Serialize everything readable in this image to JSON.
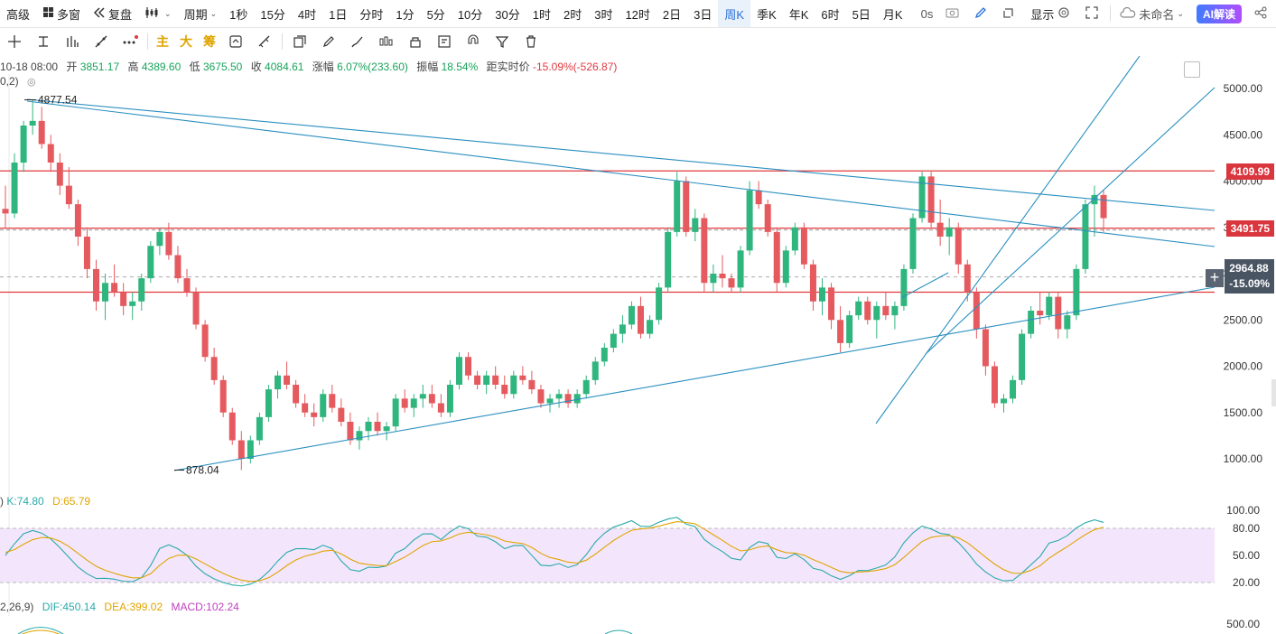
{
  "toolbar": {
    "items": [
      {
        "label": "高级",
        "icon": "none"
      },
      {
        "label": "多窗",
        "icon": "grid-icon"
      },
      {
        "label": "复盘",
        "icon": "rewind-icon"
      },
      {
        "label": "",
        "icon": "candle-type-icon",
        "caret": true
      },
      {
        "label": "周期",
        "caret": true
      },
      {
        "label": "1秒"
      },
      {
        "label": "15分"
      },
      {
        "label": "4时"
      },
      {
        "label": "1日"
      },
      {
        "label": "分时"
      },
      {
        "label": "1分"
      },
      {
        "label": "5分"
      },
      {
        "label": "10分"
      },
      {
        "label": "30分"
      },
      {
        "label": "1时"
      },
      {
        "label": "2时"
      },
      {
        "label": "3时"
      },
      {
        "label": "12时"
      },
      {
        "label": "2日"
      },
      {
        "label": "3日"
      },
      {
        "label": "周K",
        "active": true
      },
      {
        "label": "季K"
      },
      {
        "label": "年K"
      },
      {
        "label": "6时"
      },
      {
        "label": "5日"
      },
      {
        "label": "月K"
      }
    ],
    "right": {
      "timer": "0s",
      "display_label": "显示",
      "account_label": "未命名",
      "ai_label": "AI解读"
    }
  },
  "toolbar2": {
    "text_buttons": [
      "主",
      "大",
      "筹"
    ]
  },
  "ohlc": {
    "date": "10-18 08:00",
    "open_label": "开",
    "open": "3851.17",
    "high_label": "高",
    "high": "4389.60",
    "low_label": "低",
    "low": "3675.50",
    "close_label": "收",
    "close": "4084.61",
    "change_label": "涨幅",
    "change": "6.07%(233.60)",
    "amp_label": "振幅",
    "amp": "18.54%",
    "dist_label": "距实时价",
    "dist": "-15.09%(-526.87)"
  },
  "legend_stub": "0,2)",
  "chart_data": {
    "type": "candlestick",
    "price_axis_ticks": [
      5000,
      4500,
      4000,
      3500,
      3000,
      2500,
      2000,
      1500,
      1000
    ],
    "horizontal_levels": [
      {
        "value": 4109.99,
        "label": "4109.99",
        "color": "#e0393e"
      },
      {
        "value": 3491.75,
        "label": "3491.75",
        "color": "#e0393e"
      },
      {
        "value": 2800,
        "label": "",
        "color": "#e0393e"
      }
    ],
    "current_price": {
      "value": 2964.88,
      "label": "2964.88",
      "pct": "-15.09%"
    },
    "annotations": [
      {
        "text": "4877.54",
        "value": 4877.54
      },
      {
        "text": "878.04",
        "value": 878.04
      }
    ],
    "candles": [
      [
        3700,
        3950,
        3500,
        3650
      ],
      [
        3650,
        4300,
        3600,
        4200
      ],
      [
        4200,
        4650,
        4100,
        4600
      ],
      [
        4600,
        4880,
        4500,
        4650
      ],
      [
        4650,
        4800,
        4350,
        4400
      ],
      [
        4400,
        4500,
        4100,
        4200
      ],
      [
        4200,
        4300,
        3850,
        3950
      ],
      [
        3950,
        4150,
        3700,
        3750
      ],
      [
        3750,
        3800,
        3300,
        3400
      ],
      [
        3400,
        3500,
        2950,
        3050
      ],
      [
        3050,
        3150,
        2600,
        2700
      ],
      [
        2700,
        3000,
        2500,
        2900
      ],
      [
        2900,
        3100,
        2750,
        2800
      ],
      [
        2800,
        2900,
        2550,
        2650
      ],
      [
        2650,
        2800,
        2500,
        2700
      ],
      [
        2700,
        3000,
        2600,
        2950
      ],
      [
        2950,
        3350,
        2900,
        3300
      ],
      [
        3300,
        3500,
        3200,
        3450
      ],
      [
        3450,
        3550,
        3150,
        3200
      ],
      [
        3200,
        3300,
        2900,
        2950
      ],
      [
        2950,
        3050,
        2750,
        2800
      ],
      [
        2800,
        2850,
        2400,
        2450
      ],
      [
        2450,
        2500,
        2050,
        2100
      ],
      [
        2100,
        2200,
        1800,
        1850
      ],
      [
        1850,
        1900,
        1450,
        1500
      ],
      [
        1500,
        1550,
        1150,
        1200
      ],
      [
        1200,
        1300,
        878,
        1000
      ],
      [
        1000,
        1250,
        950,
        1200
      ],
      [
        1200,
        1500,
        1150,
        1450
      ],
      [
        1450,
        1800,
        1400,
        1750
      ],
      [
        1750,
        1950,
        1650,
        1900
      ],
      [
        1900,
        2050,
        1750,
        1800
      ],
      [
        1800,
        1850,
        1550,
        1600
      ],
      [
        1600,
        1700,
        1450,
        1500
      ],
      [
        1500,
        1600,
        1350,
        1450
      ],
      [
        1450,
        1750,
        1400,
        1700
      ],
      [
        1700,
        1800,
        1500,
        1550
      ],
      [
        1550,
        1650,
        1350,
        1400
      ],
      [
        1400,
        1500,
        1150,
        1200
      ],
      [
        1200,
        1350,
        1100,
        1300
      ],
      [
        1300,
        1450,
        1200,
        1400
      ],
      [
        1400,
        1500,
        1250,
        1300
      ],
      [
        1300,
        1400,
        1200,
        1350
      ],
      [
        1350,
        1700,
        1300,
        1650
      ],
      [
        1650,
        1750,
        1500,
        1550
      ],
      [
        1550,
        1700,
        1450,
        1650
      ],
      [
        1650,
        1800,
        1550,
        1700
      ],
      [
        1700,
        1800,
        1550,
        1600
      ],
      [
        1600,
        1700,
        1450,
        1500
      ],
      [
        1500,
        1850,
        1450,
        1800
      ],
      [
        1800,
        2150,
        1750,
        2100
      ],
      [
        2100,
        2150,
        1850,
        1900
      ],
      [
        1900,
        1950,
        1750,
        1800
      ],
      [
        1800,
        1950,
        1700,
        1900
      ],
      [
        1900,
        2000,
        1750,
        1800
      ],
      [
        1800,
        1900,
        1650,
        1700
      ],
      [
        1700,
        1950,
        1650,
        1900
      ],
      [
        1900,
        2000,
        1800,
        1850
      ],
      [
        1850,
        1950,
        1700,
        1750
      ],
      [
        1750,
        1800,
        1550,
        1600
      ],
      [
        1600,
        1700,
        1500,
        1650
      ],
      [
        1650,
        1750,
        1550,
        1700
      ],
      [
        1700,
        1750,
        1550,
        1600
      ],
      [
        1600,
        1750,
        1550,
        1700
      ],
      [
        1700,
        1900,
        1650,
        1850
      ],
      [
        1850,
        2100,
        1800,
        2050
      ],
      [
        2050,
        2250,
        2000,
        2200
      ],
      [
        2200,
        2400,
        2150,
        2350
      ],
      [
        2350,
        2550,
        2250,
        2450
      ],
      [
        2450,
        2700,
        2400,
        2650
      ],
      [
        2650,
        2750,
        2300,
        2350
      ],
      [
        2350,
        2550,
        2300,
        2500
      ],
      [
        2500,
        2900,
        2450,
        2850
      ],
      [
        2850,
        3500,
        2800,
        3450
      ],
      [
        3450,
        4100,
        3400,
        4000
      ],
      [
        4000,
        4050,
        3400,
        3450
      ],
      [
        3450,
        3700,
        3350,
        3600
      ],
      [
        3600,
        3650,
        2800,
        2900
      ],
      [
        2900,
        3100,
        2800,
        3000
      ],
      [
        3000,
        3200,
        2850,
        2950
      ],
      [
        2950,
        3000,
        2800,
        2850
      ],
      [
        2850,
        3300,
        2800,
        3250
      ],
      [
        3250,
        4000,
        3200,
        3900
      ],
      [
        3900,
        4000,
        3700,
        3750
      ],
      [
        3750,
        3800,
        3400,
        3450
      ],
      [
        3450,
        3500,
        2800,
        2900
      ],
      [
        2900,
        3300,
        2850,
        3250
      ],
      [
        3250,
        3550,
        3200,
        3500
      ],
      [
        3500,
        3550,
        3050,
        3100
      ],
      [
        3100,
        3150,
        2600,
        2700
      ],
      [
        2700,
        2950,
        2550,
        2850
      ],
      [
        2850,
        2900,
        2400,
        2500
      ],
      [
        2500,
        2650,
        2150,
        2250
      ],
      [
        2250,
        2600,
        2200,
        2550
      ],
      [
        2550,
        2750,
        2500,
        2700
      ],
      [
        2700,
        2750,
        2450,
        2500
      ],
      [
        2500,
        2700,
        2300,
        2650
      ],
      [
        2650,
        2800,
        2500,
        2550
      ],
      [
        2550,
        2700,
        2400,
        2650
      ],
      [
        2650,
        3100,
        2600,
        3050
      ],
      [
        3050,
        3650,
        3000,
        3600
      ],
      [
        3600,
        4100,
        3550,
        4050
      ],
      [
        4050,
        4100,
        3500,
        3550
      ],
      [
        3550,
        3800,
        3300,
        3400
      ],
      [
        3400,
        3600,
        3200,
        3500
      ],
      [
        3500,
        3550,
        3000,
        3100
      ],
      [
        3100,
        3150,
        2700,
        2800
      ],
      [
        2800,
        2850,
        2300,
        2400
      ],
      [
        2400,
        2450,
        1900,
        2000
      ],
      [
        2000,
        2050,
        1550,
        1600
      ],
      [
        1600,
        1700,
        1500,
        1650
      ],
      [
        1650,
        1900,
        1600,
        1850
      ],
      [
        1850,
        2400,
        1800,
        2350
      ],
      [
        2350,
        2650,
        2300,
        2600
      ],
      [
        2600,
        2800,
        2450,
        2550
      ],
      [
        2550,
        2800,
        2500,
        2750
      ],
      [
        2750,
        2800,
        2300,
        2400
      ],
      [
        2400,
        2600,
        2300,
        2550
      ],
      [
        2550,
        3100,
        2500,
        3050
      ],
      [
        3050,
        3800,
        3000,
        3750
      ],
      [
        3750,
        3950,
        3400,
        3850
      ],
      [
        3850,
        3900,
        3450,
        3600
      ]
    ],
    "kdj": {
      "label": "K:74.80 D:65.79",
      "k": "74.80",
      "d": "65.79",
      "axis_ticks": [
        100.0,
        80.0,
        50.0,
        20.0
      ]
    },
    "macd": {
      "label": "DIF:450.14 DEA:399.02 MACD:102.24",
      "dif": "450.14",
      "dea": "399.02",
      "macd": "102.24",
      "params": "2,26,9)",
      "axis_ticks": [
        500.0
      ]
    }
  },
  "colors": {
    "up": "#2fb57e",
    "down": "#e55a5f",
    "line": "#2a8fc0",
    "level": "#d9363e",
    "kdj_bg": "#f3e6fc"
  }
}
